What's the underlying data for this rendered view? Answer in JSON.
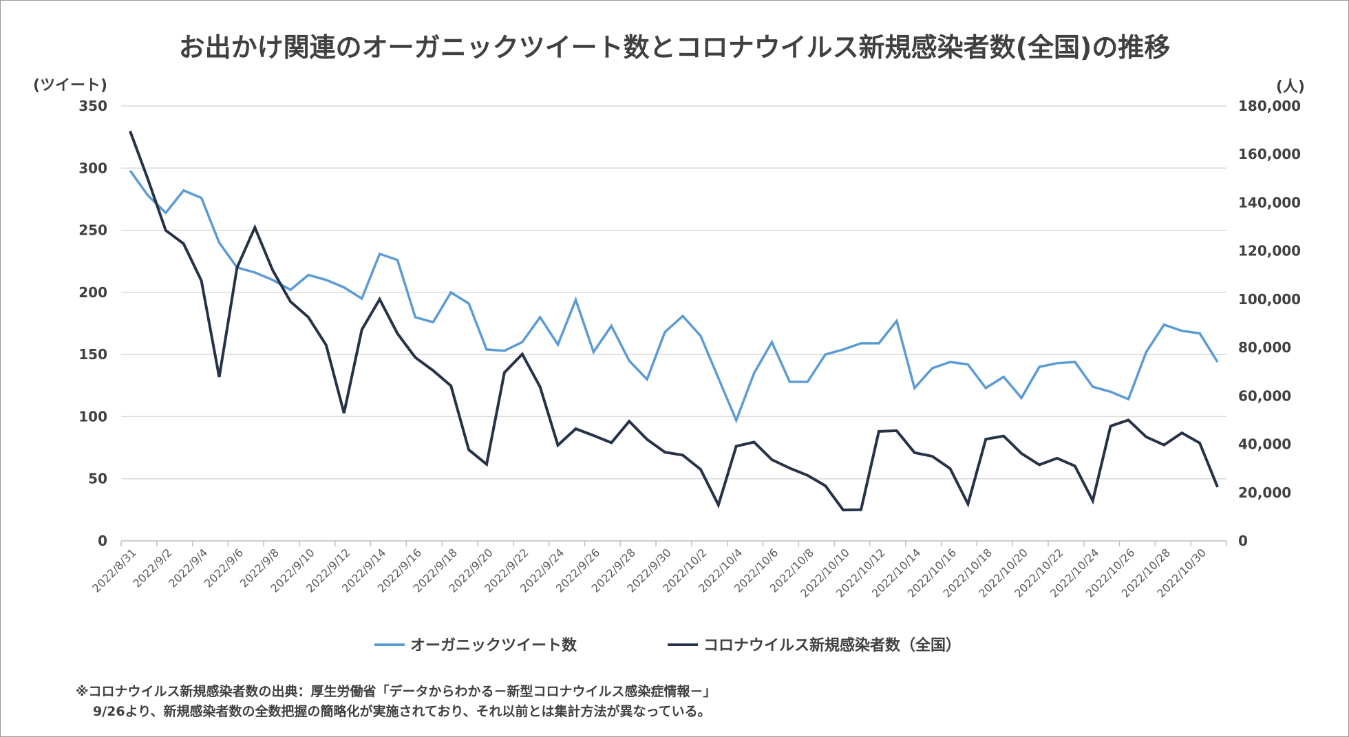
{
  "chart_data": {
    "type": "line",
    "title": "お出かけ関連のオーガニックツイート数とコロナウイルス新規感染者数(全国)の推移",
    "ylabel_left": "(ツイート)",
    "ylabel_right": "(人)",
    "y_left_range": [
      0,
      350
    ],
    "y_right_range": [
      0,
      180000
    ],
    "y_left_ticks": [
      "0",
      "50",
      "100",
      "150",
      "200",
      "250",
      "300",
      "350"
    ],
    "y_right_ticks": [
      "0",
      "20,000",
      "40,000",
      "60,000",
      "80,000",
      "100,000",
      "120,000",
      "140,000",
      "160,000",
      "180,000"
    ],
    "grid": true,
    "categories": [
      "2022/8/31",
      "2022/9/1",
      "2022/9/2",
      "2022/9/3",
      "2022/9/4",
      "2022/9/5",
      "2022/9/6",
      "2022/9/7",
      "2022/9/8",
      "2022/9/9",
      "2022/9/10",
      "2022/9/11",
      "2022/9/12",
      "2022/9/13",
      "2022/9/14",
      "2022/9/15",
      "2022/9/16",
      "2022/9/17",
      "2022/9/18",
      "2022/9/19",
      "2022/9/20",
      "2022/9/21",
      "2022/9/22",
      "2022/9/23",
      "2022/9/24",
      "2022/9/25",
      "2022/9/26",
      "2022/9/27",
      "2022/9/28",
      "2022/9/29",
      "2022/9/30",
      "2022/10/1",
      "2022/10/2",
      "2022/10/3",
      "2022/10/4",
      "2022/10/5",
      "2022/10/6",
      "2022/10/7",
      "2022/10/8",
      "2022/10/9",
      "2022/10/10",
      "2022/10/11",
      "2022/10/12",
      "2022/10/13",
      "2022/10/14",
      "2022/10/15",
      "2022/10/16",
      "2022/10/17",
      "2022/10/18",
      "2022/10/19",
      "2022/10/20",
      "2022/10/21",
      "2022/10/22",
      "2022/10/23",
      "2022/10/24",
      "2022/10/25",
      "2022/10/26",
      "2022/10/27",
      "2022/10/28",
      "2022/10/29",
      "2022/10/30",
      "2022/10/31"
    ],
    "tick_labels": [
      "2022/8/31",
      "2022/9/2",
      "2022/9/4",
      "2022/9/6",
      "2022/9/8",
      "2022/9/10",
      "2022/9/12",
      "2022/9/14",
      "2022/9/16",
      "2022/9/18",
      "2022/9/20",
      "2022/9/22",
      "2022/9/24",
      "2022/9/26",
      "2022/9/28",
      "2022/9/30",
      "2022/10/2",
      "2022/10/4",
      "2022/10/6",
      "2022/10/8",
      "2022/10/10",
      "2022/10/12",
      "2022/10/14",
      "2022/10/16",
      "2022/10/18",
      "2022/10/20",
      "2022/10/22",
      "2022/10/24",
      "2022/10/26",
      "2022/10/28",
      "2022/10/30"
    ],
    "series": [
      {
        "name": "オーガニックツイート数",
        "axis": "left",
        "color": "#5b9bd5",
        "values": [
          298,
          278,
          264,
          282,
          276,
          240,
          220,
          216,
          210,
          202,
          214,
          210,
          204,
          195,
          231,
          226,
          180,
          176,
          200,
          191,
          154,
          153,
          160,
          180,
          158,
          194,
          152,
          173,
          145,
          130,
          168,
          181,
          165,
          131,
          97,
          135,
          160,
          128,
          128,
          150,
          154,
          159,
          159,
          177,
          123,
          139,
          144,
          142,
          123,
          132,
          115,
          140,
          143,
          144,
          124,
          120,
          114,
          152,
          174,
          169,
          167,
          144
        ]
      },
      {
        "name": "コロナウイルス新規感染者数（全国）",
        "axis": "right",
        "color": "#263247",
        "values": [
          169600,
          149700,
          128500,
          123000,
          107700,
          67800,
          113100,
          129700,
          112000,
          99000,
          92600,
          81000,
          52900,
          87400,
          100000,
          85800,
          75900,
          70500,
          64200,
          37700,
          31700,
          69700,
          77300,
          63700,
          39600,
          46400,
          43600,
          40600,
          49500,
          42000,
          36700,
          35500,
          29600,
          14900,
          39200,
          40900,
          33600,
          30100,
          27100,
          22800,
          12800,
          12900,
          45300,
          45600,
          36500,
          35000,
          29900,
          15300,
          42100,
          43400,
          36200,
          31500,
          34200,
          31000,
          16600,
          47500,
          50000,
          43000,
          39700,
          44700,
          40500,
          22300
        ]
      }
    ],
    "legend": "bottom-center"
  },
  "notes": {
    "line1": "※コロナウイルス新規感染者数の出典：厚生労働省「データからわかる－新型コロナウイルス感染症情報－」",
    "line2": "9/26より、新規感染者数の全数把握の簡略化が実施されており、それ以前とは集計方法が異なっている。"
  }
}
